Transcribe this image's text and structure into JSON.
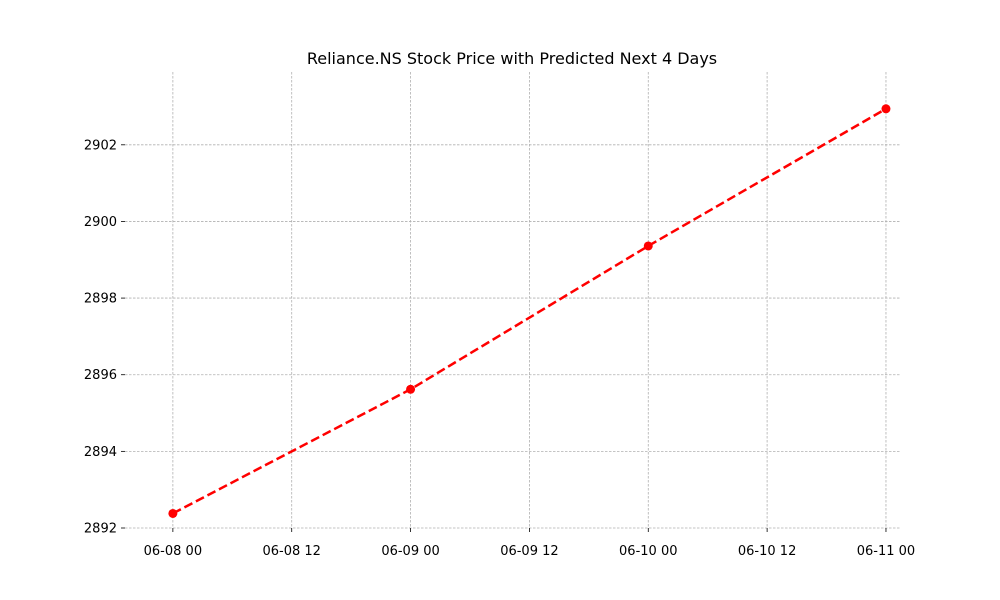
{
  "chart_data": {
    "type": "line",
    "title": "Reliance.NS Stock Price with Predicted Next 4 Days",
    "xlabel": "",
    "ylabel": "",
    "x": [
      "2024-06-08T00:00",
      "2024-06-09T00:00",
      "2024-06-10T00:00",
      "2024-06-11T00:00"
    ],
    "series": [
      {
        "values": [
          2892.38,
          2895.62,
          2899.36,
          2902.94
        ],
        "color": "#ff0000",
        "line_style": "dashed",
        "marker": "circle"
      }
    ],
    "xlim": [
      "2024-06-07T19:10",
      "2024-06-11T01:25"
    ],
    "ylim": [
      2892.0,
      2903.9
    ],
    "x_ticks": [
      "06-08 00",
      "06-08 12",
      "06-09 00",
      "06-09 12",
      "06-10 00",
      "06-10 12",
      "06-11 00"
    ],
    "y_ticks": [
      "2892",
      "2894",
      "2896",
      "2898",
      "2900",
      "2902"
    ],
    "grid": true,
    "legend": "none"
  }
}
